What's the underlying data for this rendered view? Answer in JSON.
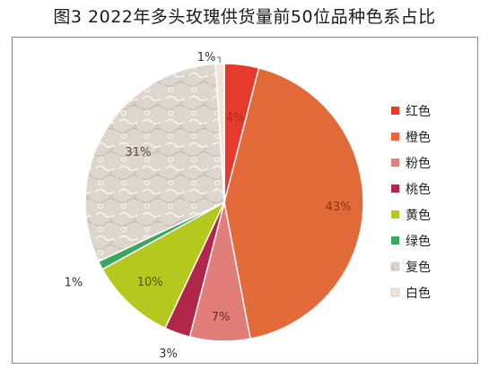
{
  "chart_data": {
    "type": "pie",
    "title": "图3  2022年多头玫瑰供货量前50位品种色系占比",
    "legend_placement": "right",
    "slices": [
      {
        "name": "红色",
        "value": 4,
        "label": "4%",
        "color": "#e63a2e"
      },
      {
        "name": "橙色",
        "value": 43,
        "label": "43%",
        "color": "#e26a38"
      },
      {
        "name": "粉色",
        "value": 7,
        "label": "7%",
        "color": "#e27e79"
      },
      {
        "name": "桃色",
        "value": 3,
        "label": "3%",
        "color": "#b3264c"
      },
      {
        "name": "黄色",
        "value": 10,
        "label": "10%",
        "color": "#b4c81e"
      },
      {
        "name": "绿色",
        "value": 1,
        "label": "1%",
        "color": "#3aa85c"
      },
      {
        "name": "复色",
        "value": 31,
        "label": "31%",
        "color": "#ddd6cf"
      },
      {
        "name": "白色",
        "value": 1,
        "label": "1%",
        "color": "#f1e4d8"
      }
    ]
  }
}
